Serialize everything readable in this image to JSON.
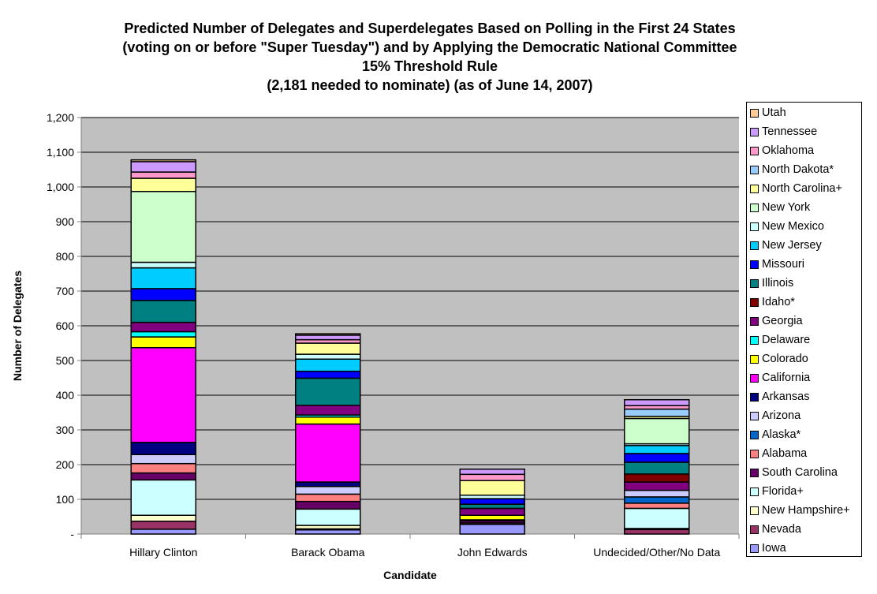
{
  "title_lines": [
    "Predicted Number of Delegates and Superdelegates Based on Polling in the First 24 States",
    "(voting on or before \"Super Tuesday\") and by Applying the Democratic National Committee",
    "15% Threshold Rule",
    "(2,181 needed to nominate) (as of June 14, 2007)"
  ],
  "chart_data": {
    "type": "bar",
    "stacked": true,
    "title": "Predicted Number of Delegates and Superdelegates Based on Polling in the First 24 States (voting on or before \"Super Tuesday\") and by Applying the Democratic National Committee 15% Threshold Rule (2,181 needed to nominate) (as of June 14, 2007)",
    "xlabel": "Candidate",
    "ylabel": "Number of Delegates",
    "ylim": [
      0,
      1200
    ],
    "yticks": [
      0,
      100,
      200,
      300,
      400,
      500,
      600,
      700,
      800,
      900,
      1000,
      1100,
      1200
    ],
    "ytick_labels": [
      "-",
      "100",
      "200",
      "300",
      "400",
      "500",
      "600",
      "700",
      "800",
      "900",
      "1,000",
      "1,100",
      "1,200"
    ],
    "grid": true,
    "legend_position": "right",
    "plot_background": "#c0c0c0",
    "categories": [
      "Hillary Clinton",
      "Barack Obama",
      "John Edwards",
      "Undecided/Other/No Data"
    ],
    "series": [
      {
        "name": "Iowa",
        "color": "#9999ff",
        "values": [
          14,
          12,
          28,
          0
        ]
      },
      {
        "name": "Nevada",
        "color": "#993366",
        "values": [
          23,
          3,
          4,
          13
        ]
      },
      {
        "name": "New Hampshire+",
        "color": "#ffffcc",
        "values": [
          17,
          10,
          0,
          3
        ]
      },
      {
        "name": "Florida+",
        "color": "#ccffff",
        "values": [
          102,
          47,
          0,
          58
        ]
      },
      {
        "name": "South Carolina",
        "color": "#660066",
        "values": [
          20,
          22,
          6,
          0
        ]
      },
      {
        "name": "Alabama",
        "color": "#ff8080",
        "values": [
          27,
          21,
          3,
          15
        ]
      },
      {
        "name": "Alaska*",
        "color": "#0066cc",
        "values": [
          0,
          0,
          0,
          18
        ]
      },
      {
        "name": "Arizona",
        "color": "#ccccff",
        "values": [
          26,
          22,
          0,
          19
        ]
      },
      {
        "name": "Arkansas",
        "color": "#000080",
        "values": [
          35,
          13,
          0,
          0
        ]
      },
      {
        "name": "California",
        "color": "#ff00ff",
        "values": [
          273,
          167,
          0,
          0
        ]
      },
      {
        "name": "Colorado",
        "color": "#ffff00",
        "values": [
          31,
          20,
          13,
          0
        ]
      },
      {
        "name": "Delaware",
        "color": "#00ffff",
        "values": [
          15,
          6,
          0,
          0
        ]
      },
      {
        "name": "Georgia",
        "color": "#800080",
        "values": [
          27,
          28,
          20,
          24
        ]
      },
      {
        "name": "Idaho*",
        "color": "#800000",
        "values": [
          0,
          0,
          0,
          23
        ]
      },
      {
        "name": "Illinois",
        "color": "#008080",
        "values": [
          63,
          78,
          12,
          34
        ]
      },
      {
        "name": "Missouri",
        "color": "#0000ff",
        "values": [
          34,
          20,
          16,
          25
        ]
      },
      {
        "name": "New Jersey",
        "color": "#00ccff",
        "values": [
          60,
          35,
          0,
          23
        ]
      },
      {
        "name": "New Mexico",
        "color": "#ccffff",
        "values": [
          16,
          14,
          10,
          5
        ]
      },
      {
        "name": "New York",
        "color": "#ccffcc",
        "values": [
          204,
          0,
          0,
          73
        ]
      },
      {
        "name": "North Carolina+",
        "color": "#ffff99",
        "values": [
          38,
          32,
          42,
          6
        ]
      },
      {
        "name": "North Dakota*",
        "color": "#99ccff",
        "values": [
          0,
          0,
          0,
          21
        ]
      },
      {
        "name": "Oklahoma",
        "color": "#ff99cc",
        "values": [
          18,
          10,
          18,
          10
        ]
      },
      {
        "name": "Tennessee",
        "color": "#cc99ff",
        "values": [
          30,
          13,
          15,
          17
        ]
      },
      {
        "name": "Utah",
        "color": "#ffcc99",
        "values": [
          5,
          4,
          0,
          0
        ]
      }
    ]
  }
}
